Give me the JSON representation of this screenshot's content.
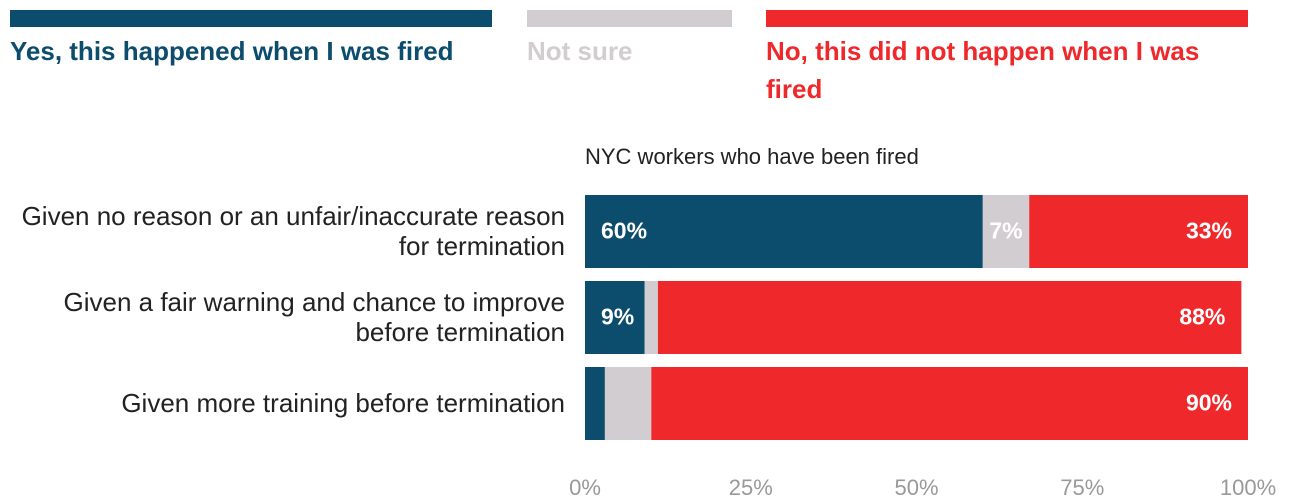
{
  "chart_data": {
    "type": "stacked-bar-horizontal",
    "subtitle": "NYC workers who have been fired",
    "categories": [
      "Given no reason or an unfair/inaccurate reason for termination",
      "Given a fair warning and chance to improve before termination",
      "Given more training before termination"
    ],
    "series": [
      {
        "name": "Yes, this happened when I was fired",
        "color": "#0c4c6c",
        "values": [
          60,
          9,
          3
        ],
        "value_labels": [
          "60%",
          "9%",
          null
        ]
      },
      {
        "name": "Not sure",
        "color": "#d2cdd0",
        "values": [
          7,
          2,
          7
        ],
        "value_labels": [
          "7%",
          null,
          null
        ]
      },
      {
        "name": "No, this did not happen when I was fired",
        "color": "#ee282b",
        "values": [
          33,
          88,
          90
        ],
        "value_labels": [
          "33%",
          "88%",
          "90%"
        ]
      }
    ],
    "xlim": [
      0,
      100
    ],
    "xticks": [
      {
        "value": 0,
        "label": "0%"
      },
      {
        "value": 25,
        "label": "25%"
      },
      {
        "value": 50,
        "label": "50%"
      },
      {
        "value": 75,
        "label": "75%"
      },
      {
        "value": 100,
        "label": "100%"
      }
    ],
    "legend": "top"
  }
}
